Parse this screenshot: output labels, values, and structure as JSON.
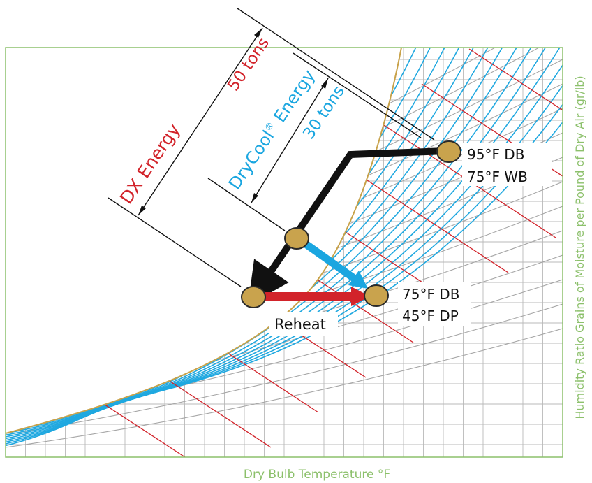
{
  "diagram": {
    "dx_energy_label": "DX Energy",
    "dx_tons": "50 tons",
    "drycool_label": "DryCool",
    "drycool_reg": "®",
    "drycool_suffix": " Energy",
    "drycool_tons": "30 tons",
    "state_start_db": "95°F DB",
    "state_start_wb": "75°F WB",
    "state_end_db": "75°F DB",
    "state_end_dp": "45°F DP",
    "reheat_label": "Reheat",
    "x_axis_label": "Dry Bulb Temperature °F",
    "y_axis_label": "Humidity Ratio Grains of Moisture per Pound of Dry Air (gr/lb)"
  },
  "colors": {
    "grid": "#b9b9b9",
    "humidity_lines": "#a6a6a6",
    "saturation_curve": "#c8a24a",
    "rh_curves": "#1fa8e0",
    "wet_bulb_lines": "#d2232a",
    "dx_accent": "#d2232a",
    "drycool_accent": "#1aa6e0",
    "process_path": "#111111",
    "state_point": "#c9a34d",
    "axis_labels": "#8cc06b"
  }
}
